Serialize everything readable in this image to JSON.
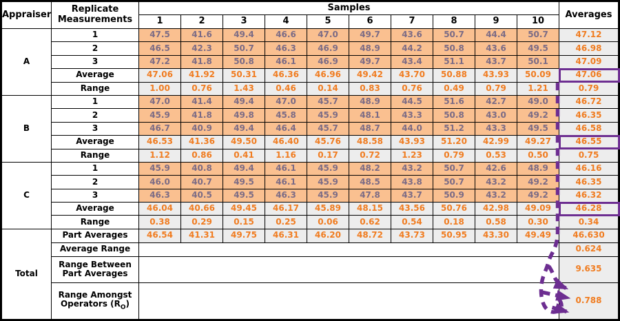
{
  "header": {
    "appraiser": "Appraiser",
    "replicate_line1": "Replicate",
    "replicate_line2": "Measurements",
    "samples": "Samples",
    "sample_numbers": [
      "1",
      "2",
      "3",
      "4",
      "5",
      "6",
      "7",
      "8",
      "9",
      "10"
    ],
    "averages": "Averages"
  },
  "sections": [
    {
      "appraiser": "A",
      "rows": [
        {
          "label": "1",
          "kind": "data",
          "values": [
            "47.5",
            "41.6",
            "49.4",
            "46.6",
            "47.0",
            "49.7",
            "43.6",
            "50.7",
            "44.4",
            "50.7"
          ],
          "average": "47.12"
        },
        {
          "label": "2",
          "kind": "data",
          "values": [
            "46.5",
            "42.3",
            "50.7",
            "46.3",
            "46.9",
            "48.9",
            "44.2",
            "50.8",
            "43.6",
            "49.5"
          ],
          "average": "46.98"
        },
        {
          "label": "3",
          "kind": "data",
          "values": [
            "47.2",
            "41.8",
            "50.8",
            "46.1",
            "46.9",
            "49.7",
            "43.4",
            "51.1",
            "43.7",
            "50.1"
          ],
          "average": "47.09"
        },
        {
          "label": "Average",
          "kind": "summary",
          "boxed": true,
          "values": [
            "47.06",
            "41.92",
            "50.31",
            "46.36",
            "46.96",
            "49.42",
            "43.70",
            "50.88",
            "43.93",
            "50.09"
          ],
          "average": "47.06"
        },
        {
          "label": "Range",
          "kind": "summary",
          "values": [
            "1.00",
            "0.76",
            "1.43",
            "0.46",
            "0.14",
            "0.83",
            "0.76",
            "0.49",
            "0.79",
            "1.21"
          ],
          "average": "0.79"
        }
      ]
    },
    {
      "appraiser": "B",
      "rows": [
        {
          "label": "1",
          "kind": "data",
          "values": [
            "47.0",
            "41.4",
            "49.4",
            "47.0",
            "45.7",
            "48.9",
            "44.5",
            "51.6",
            "42.7",
            "49.0"
          ],
          "average": "46.72"
        },
        {
          "label": "2",
          "kind": "data",
          "values": [
            "45.9",
            "41.8",
            "49.8",
            "45.8",
            "45.9",
            "48.1",
            "43.3",
            "50.8",
            "43.0",
            "49.2"
          ],
          "average": "46.35"
        },
        {
          "label": "3",
          "kind": "data",
          "values": [
            "46.7",
            "40.9",
            "49.4",
            "46.4",
            "45.7",
            "48.7",
            "44.0",
            "51.2",
            "43.3",
            "49.5"
          ],
          "average": "46.58"
        },
        {
          "label": "Average",
          "kind": "summary",
          "boxed": true,
          "values": [
            "46.53",
            "41.36",
            "49.50",
            "46.40",
            "45.76",
            "48.58",
            "43.93",
            "51.20",
            "42.99",
            "49.27"
          ],
          "average": "46.55"
        },
        {
          "label": "Range",
          "kind": "summary",
          "values": [
            "1.12",
            "0.86",
            "0.41",
            "1.16",
            "0.17",
            "0.72",
            "1.23",
            "0.79",
            "0.53",
            "0.50"
          ],
          "average": "0.75"
        }
      ]
    },
    {
      "appraiser": "C",
      "rows": [
        {
          "label": "1",
          "kind": "data",
          "values": [
            "45.9",
            "40.8",
            "49.4",
            "46.1",
            "45.9",
            "48.2",
            "43.2",
            "50.7",
            "42.6",
            "48.9"
          ],
          "average": "46.16"
        },
        {
          "label": "2",
          "kind": "data",
          "values": [
            "46.0",
            "40.7",
            "49.5",
            "46.1",
            "45.9",
            "48.5",
            "43.8",
            "50.7",
            "43.2",
            "49.2"
          ],
          "average": "46.35"
        },
        {
          "label": "3",
          "kind": "data",
          "values": [
            "46.3",
            "40.5",
            "49.5",
            "46.3",
            "45.9",
            "47.8",
            "43.7",
            "50.9",
            "43.2",
            "49.2"
          ],
          "average": "46.32"
        },
        {
          "label": "Average",
          "kind": "summary",
          "boxed": true,
          "values": [
            "46.04",
            "40.66",
            "49.45",
            "46.17",
            "45.89",
            "48.15",
            "43.56",
            "50.76",
            "42.98",
            "49.09"
          ],
          "average": "46.28"
        },
        {
          "label": "Range",
          "kind": "summary",
          "values": [
            "0.38",
            "0.29",
            "0.15",
            "0.25",
            "0.06",
            "0.62",
            "0.54",
            "0.18",
            "0.58",
            "0.30"
          ],
          "average": "0.34"
        }
      ]
    }
  ],
  "total": {
    "label": "Total",
    "rows": [
      {
        "kind": "values",
        "label_lines": [
          "Part Averages"
        ],
        "values": [
          "46.54",
          "41.31",
          "49.75",
          "46.31",
          "46.20",
          "48.72",
          "43.73",
          "50.95",
          "43.30",
          "49.49"
        ],
        "average": "46.630"
      },
      {
        "kind": "blank",
        "label_lines": [
          "Average Range"
        ],
        "average": "0.624"
      },
      {
        "kind": "blank",
        "label_lines": [
          "Range Between",
          "Part Averages"
        ],
        "average": "9.635"
      },
      {
        "kind": "blank",
        "label_lines": [
          "Range Amongst",
          "Operators (R"
        ],
        "label_sub": "O",
        "label_close": ")",
        "average": "0.788",
        "target": true
      }
    ]
  },
  "annotation": {
    "name": "operator-averages-to-ro-dashed-arrow",
    "boxed_values": [
      "47.06",
      "46.55",
      "46.28"
    ],
    "arrow_target_value": "0.788",
    "color": "#6d2e91"
  },
  "colors": {
    "measurement_fill": "#fac090",
    "summary_fill": "#ededed",
    "measurement_text": "#7b6b85",
    "result_text": "#f07c20",
    "grid_border": "#000000",
    "annotation_purple": "#6d2e91"
  }
}
